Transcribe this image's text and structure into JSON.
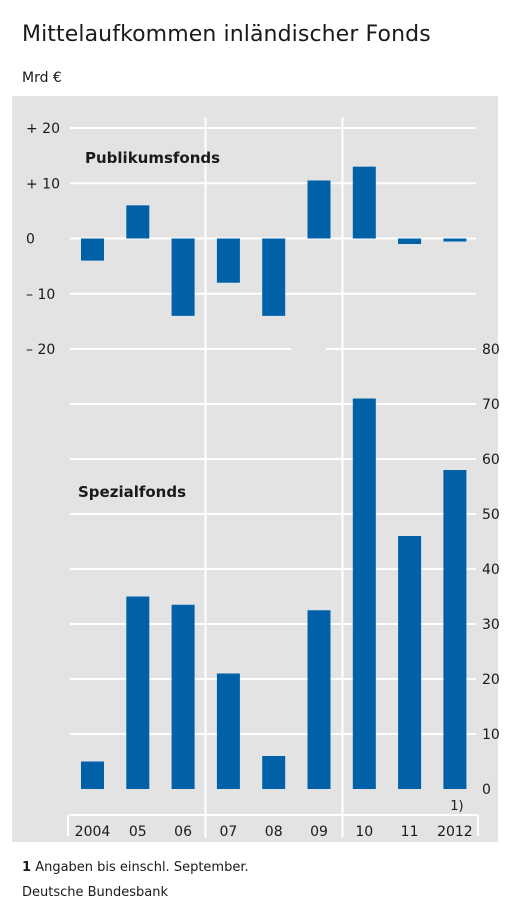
{
  "title": "Mittelaufkommen inländischer Fonds",
  "unit": "Mrd €",
  "footnote": {
    "number": "1",
    "text": "Angaben bis einschl. September."
  },
  "source": "Deutsche Bundesbank",
  "colors": {
    "bar": "#0061a8",
    "panel": "#e3e3e3",
    "grid": "#ffffff"
  },
  "chart_data": [
    {
      "type": "bar",
      "title": "Publikumsfonds",
      "categories": [
        "2004",
        "05",
        "06",
        "07",
        "08",
        "09",
        "10",
        "11",
        "2012"
      ],
      "values": [
        -4,
        6,
        -14,
        -8,
        -14,
        10.5,
        13,
        -1,
        -0.5
      ],
      "yticks": [
        "+ 20",
        "+ 10",
        "0",
        "– 10",
        "– 20"
      ],
      "ylim": [
        -20,
        20
      ],
      "ylabel": "Mrd €",
      "axis": "left"
    },
    {
      "type": "bar",
      "title": "Spezialfonds",
      "categories": [
        "2004",
        "05",
        "06",
        "07",
        "08",
        "09",
        "10",
        "11",
        "2012"
      ],
      "values": [
        5,
        35,
        33.5,
        21,
        6,
        32.5,
        71,
        46,
        58
      ],
      "yticks": [
        "80",
        "70",
        "60",
        "50",
        "40",
        "30",
        "20",
        "10",
        "0"
      ],
      "ylim": [
        0,
        80
      ],
      "ylabel": "Mrd €",
      "axis": "right"
    }
  ],
  "category_note": {
    "category": "2012",
    "marker": "1)"
  }
}
